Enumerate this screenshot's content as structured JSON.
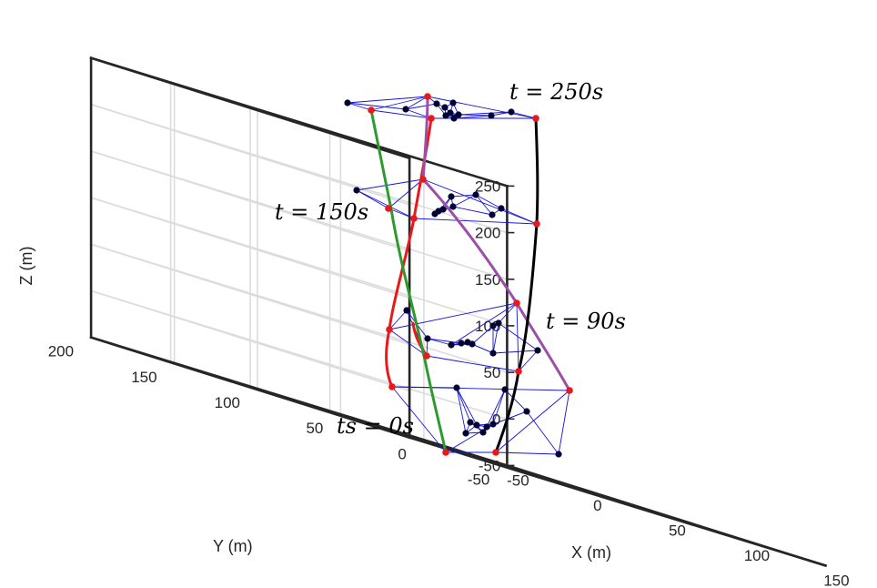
{
  "chart_data": {
    "type": "line3d",
    "xlabel": "X (m)",
    "ylabel": "Y (m)",
    "zlabel": "Z (m)",
    "xlim": [
      -50,
      150
    ],
    "ylim": [
      -50,
      200
    ],
    "zlim": [
      -50,
      250
    ],
    "x_ticks": [
      "-50",
      "0",
      "50",
      "100",
      "150"
    ],
    "y_ticks": [
      "-50",
      "0",
      "50",
      "100",
      "150",
      "200"
    ],
    "z_ticks": [
      "-50",
      "0",
      "50",
      "100",
      "150",
      "200",
      "250"
    ],
    "grid": true,
    "annotations": [
      {
        "text": "t = 250s"
      },
      {
        "text": "t = 150s"
      },
      {
        "text": "t = 90s"
      },
      {
        "text": "ts = 0s"
      }
    ],
    "trajectory_colors": [
      "#e8191b",
      "#2e9a2e",
      "#9b4fa8",
      "#000000"
    ],
    "network_color": "#1414d8",
    "follower_color": "#000033",
    "leader_color": "#e8191b"
  }
}
